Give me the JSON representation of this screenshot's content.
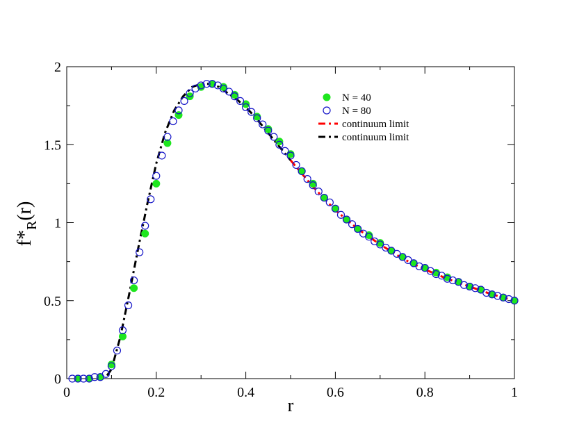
{
  "chart_data": {
    "type": "scatter",
    "xlabel": "r",
    "ylabel_main": "f*",
    "ylabel_sub": "R",
    "ylabel_tail": "(r)",
    "xlim": [
      0,
      1
    ],
    "ylim": [
      0,
      2
    ],
    "x_ticks": [
      0,
      0.2,
      0.4,
      0.6,
      0.8,
      1
    ],
    "x_tick_labels": [
      "0",
      "0.2",
      "0.4",
      "0.6",
      "0.8",
      "1"
    ],
    "y_ticks": [
      0,
      0.5,
      1,
      1.5,
      2
    ],
    "y_tick_labels": [
      "0",
      "0.5",
      "1",
      "1.5",
      "2"
    ],
    "grid": false,
    "legend_position": "top-right",
    "series": [
      {
        "name": "N = 40",
        "marker": "filled-circle",
        "color": "#1ee61e",
        "x": [
          0.025,
          0.05,
          0.075,
          0.1,
          0.125,
          0.15,
          0.175,
          0.2,
          0.225,
          0.25,
          0.275,
          0.3,
          0.325,
          0.35,
          0.375,
          0.4,
          0.425,
          0.45,
          0.475,
          0.5,
          0.525,
          0.55,
          0.575,
          0.6,
          0.625,
          0.65,
          0.675,
          0.7,
          0.725,
          0.75,
          0.775,
          0.8,
          0.825,
          0.85,
          0.875,
          0.9,
          0.925,
          0.95,
          0.975,
          1.0
        ],
        "y": [
          0.0,
          0.0,
          0.01,
          0.09,
          0.27,
          0.58,
          0.93,
          1.25,
          1.51,
          1.69,
          1.81,
          1.87,
          1.89,
          1.87,
          1.82,
          1.76,
          1.68,
          1.6,
          1.52,
          1.44,
          1.33,
          1.25,
          1.16,
          1.09,
          1.02,
          0.96,
          0.92,
          0.87,
          0.82,
          0.78,
          0.74,
          0.71,
          0.68,
          0.65,
          0.62,
          0.59,
          0.57,
          0.54,
          0.52,
          0.5
        ]
      },
      {
        "name": "N = 80",
        "marker": "open-circle",
        "color": "#1414c8",
        "x": [
          0.0125,
          0.025,
          0.0375,
          0.05,
          0.0625,
          0.075,
          0.0875,
          0.1,
          0.1125,
          0.125,
          0.1375,
          0.15,
          0.1625,
          0.175,
          0.1875,
          0.2,
          0.2125,
          0.225,
          0.2375,
          0.25,
          0.2625,
          0.275,
          0.2875,
          0.3,
          0.3125,
          0.325,
          0.3375,
          0.35,
          0.3625,
          0.375,
          0.3875,
          0.4,
          0.4125,
          0.425,
          0.4375,
          0.45,
          0.4625,
          0.475,
          0.4875,
          0.5,
          0.5125,
          0.525,
          0.5375,
          0.55,
          0.5625,
          0.575,
          0.5875,
          0.6,
          0.6125,
          0.625,
          0.6375,
          0.65,
          0.6625,
          0.675,
          0.6875,
          0.7,
          0.7125,
          0.725,
          0.7375,
          0.75,
          0.7625,
          0.775,
          0.7875,
          0.8,
          0.8125,
          0.825,
          0.8375,
          0.85,
          0.8625,
          0.875,
          0.8875,
          0.9,
          0.9125,
          0.925,
          0.9375,
          0.95,
          0.9625,
          0.975,
          0.9875,
          1.0
        ],
        "y": [
          0.0,
          0.0,
          0.0,
          0.0,
          0.01,
          0.01,
          0.03,
          0.08,
          0.18,
          0.31,
          0.47,
          0.63,
          0.81,
          0.98,
          1.15,
          1.3,
          1.43,
          1.55,
          1.65,
          1.72,
          1.78,
          1.83,
          1.86,
          1.88,
          1.89,
          1.89,
          1.88,
          1.86,
          1.84,
          1.81,
          1.78,
          1.74,
          1.71,
          1.67,
          1.63,
          1.59,
          1.55,
          1.5,
          1.46,
          1.43,
          1.37,
          1.33,
          1.28,
          1.24,
          1.2,
          1.16,
          1.13,
          1.09,
          1.05,
          1.02,
          0.99,
          0.96,
          0.93,
          0.91,
          0.88,
          0.86,
          0.84,
          0.82,
          0.8,
          0.78,
          0.76,
          0.74,
          0.72,
          0.71,
          0.69,
          0.67,
          0.66,
          0.64,
          0.63,
          0.62,
          0.6,
          0.59,
          0.58,
          0.57,
          0.55,
          0.54,
          0.53,
          0.52,
          0.51,
          0.5
        ]
      },
      {
        "name": "continuum limit",
        "marker": "dashed-line",
        "color": "#ff0000",
        "x": [
          0.5,
          0.55,
          0.6,
          0.65,
          0.7,
          0.75,
          0.8,
          0.85,
          0.9,
          0.95,
          1.0
        ],
        "y": [
          1.4,
          1.23,
          1.08,
          0.96,
          0.86,
          0.77,
          0.7,
          0.64,
          0.59,
          0.54,
          0.5
        ]
      },
      {
        "name": "continuum limit",
        "marker": "dashed-line",
        "color": "#000000",
        "x": [
          0.09,
          0.1,
          0.12,
          0.14,
          0.16,
          0.18,
          0.2,
          0.22,
          0.24,
          0.26,
          0.28,
          0.3,
          0.32,
          0.34,
          0.36,
          0.38,
          0.4,
          0.42,
          0.44,
          0.46,
          0.48,
          0.5
        ],
        "y": [
          0.02,
          0.06,
          0.27,
          0.55,
          0.84,
          1.12,
          1.38,
          1.58,
          1.72,
          1.81,
          1.87,
          1.89,
          1.89,
          1.87,
          1.83,
          1.79,
          1.74,
          1.68,
          1.61,
          1.54,
          1.47,
          1.4
        ]
      }
    ]
  }
}
